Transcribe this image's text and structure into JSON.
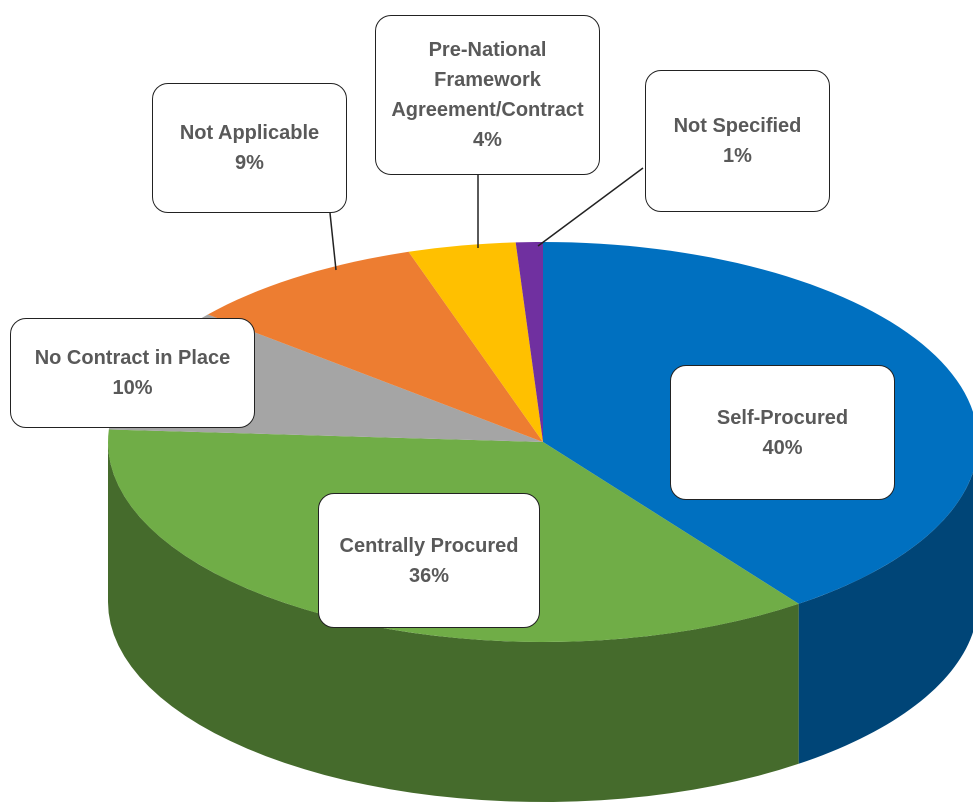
{
  "chart_data": {
    "type": "pie",
    "categories": [
      "Self-Procured",
      "Centrally Procured",
      "No Contract in Place",
      "Not Applicable",
      "Pre-National Framework Agreement/Contract",
      "Not Specified"
    ],
    "values": [
      40,
      36,
      10,
      9,
      4,
      1
    ],
    "value_labels": [
      "40%",
      "36%",
      "10%",
      "9%",
      "4%",
      "1%"
    ],
    "colors": [
      "#0070c0",
      "#70ad47",
      "#a5a5a5",
      "#ed7d31",
      "#ffc000",
      "#7030a0"
    ]
  }
}
